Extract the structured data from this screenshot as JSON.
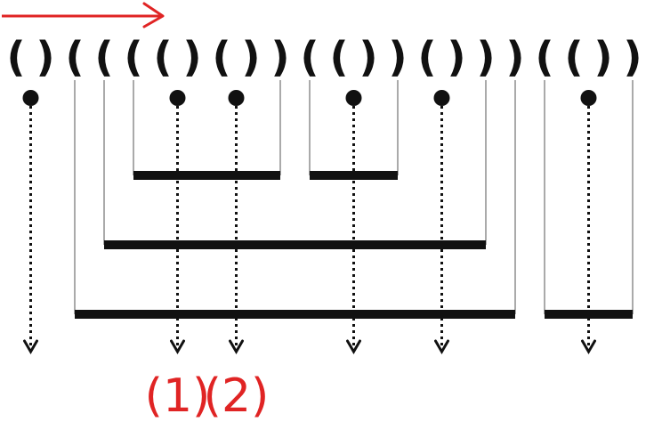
{
  "colors": {
    "ink": "#111111",
    "thin_line": "#aaaaaa",
    "annotation": "#e02424"
  },
  "direction_arrow": {
    "color": "#e02424",
    "icon": "right-arrow"
  },
  "parentheses": "()(((()())(())()))(())",
  "dotted_arrows": [
    {
      "paren_index": 0,
      "label": ""
    },
    {
      "paren_index": 5,
      "label": "(1)"
    },
    {
      "paren_index": 7,
      "label": "(2)"
    },
    {
      "paren_index": 11,
      "label": ""
    },
    {
      "paren_index": 14,
      "label": ""
    },
    {
      "paren_index": 19,
      "label": ""
    }
  ],
  "bracket_levels": [
    {
      "open_index": 4,
      "close_index": 9,
      "depth": 3
    },
    {
      "open_index": 10,
      "close_index": 13,
      "depth": 3
    },
    {
      "open_index": 3,
      "close_index": 16,
      "depth": 2
    },
    {
      "open_index": 2,
      "close_index": 17,
      "depth": 1
    },
    {
      "open_index": 18,
      "close_index": 21,
      "depth": 1
    }
  ]
}
